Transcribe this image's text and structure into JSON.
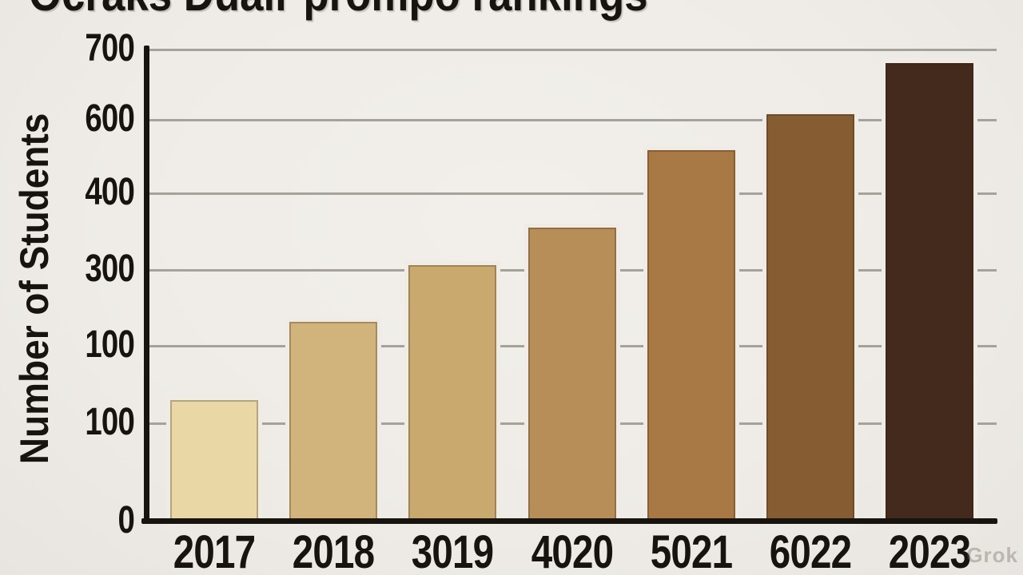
{
  "title": "Ocraks Duair prompo rankings",
  "watermark": "Grok",
  "chart_data": {
    "type": "bar",
    "title": "Ocraks Duair prompo rankings",
    "subtitle": "",
    "xlabel": "",
    "ylabel": "Number of Students",
    "categories": [
      "2017",
      "2018",
      "3019",
      "4020",
      "5021",
      "6022",
      "2023"
    ],
    "values": [
      180,
      296,
      380,
      436,
      551,
      604,
      680
    ],
    "bar_colors": [
      "#e9d8a6",
      "#d0b47b",
      "#c9a96e",
      "#b78d58",
      "#a87845",
      "#865c32",
      "#432a1d"
    ],
    "y_tick_labels": [
      "700",
      "600",
      "400",
      "300",
      "100",
      "100",
      "0"
    ],
    "ylim": [
      0,
      700
    ],
    "grid": true,
    "legend": false,
    "emphasized_category": "2023",
    "colors": {
      "background": "#efece7",
      "axis": "#17130e",
      "gridline": "#a5a19b",
      "text": "#17130e"
    }
  }
}
